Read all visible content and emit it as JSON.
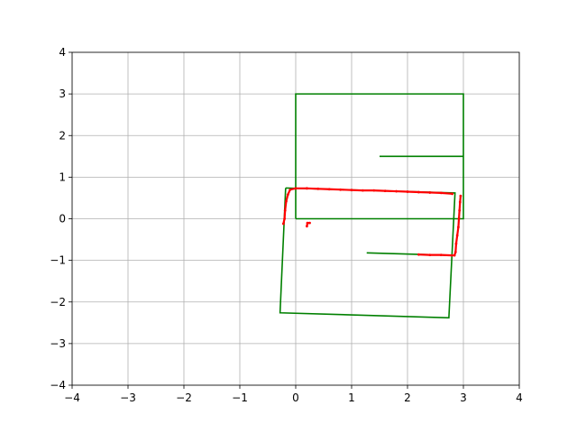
{
  "chart_data": {
    "type": "line",
    "title": "",
    "xlabel": "",
    "ylabel": "",
    "xlim": [
      -4,
      4
    ],
    "ylim": [
      -4,
      4
    ],
    "grid": true,
    "x_ticks": [
      -4,
      -3,
      -2,
      -1,
      0,
      1,
      2,
      3,
      4
    ],
    "y_ticks": [
      -4,
      -3,
      -2,
      -1,
      0,
      1,
      2,
      3,
      4
    ],
    "x_tick_labels": [
      "−4",
      "−3",
      "−2",
      "−1",
      "0",
      "1",
      "2",
      "3",
      "4"
    ],
    "y_tick_labels": [
      "−4",
      "−3",
      "−2",
      "−1",
      "0",
      "1",
      "2",
      "3",
      "4"
    ],
    "series": [
      {
        "color": "#008000",
        "style": "line",
        "segments": [
          [
            [
              0,
              0
            ],
            [
              0,
              3
            ],
            [
              3,
              3
            ],
            [
              3,
              0
            ],
            [
              0,
              0
            ]
          ],
          [
            [
              1.5,
              1.5
            ],
            [
              3,
              1.5
            ]
          ],
          [
            [
              -0.18,
              0.74
            ],
            [
              2.85,
              0.62
            ],
            [
              2.74,
              -2.38
            ],
            [
              -0.28,
              -2.26
            ],
            [
              -0.18,
              0.74
            ]
          ],
          [
            [
              1.27,
              -0.82
            ],
            [
              2.8,
              -0.88
            ]
          ]
        ]
      },
      {
        "color": "#ff0000",
        "style": "scatter",
        "segments": [
          [
            [
              -0.22,
              -0.12
            ],
            [
              -0.2,
              0.0
            ],
            [
              -0.19,
              0.2
            ],
            [
              -0.17,
              0.42
            ],
            [
              -0.14,
              0.58
            ],
            [
              -0.1,
              0.7
            ],
            [
              0.0,
              0.73
            ],
            [
              0.2,
              0.73
            ],
            [
              0.4,
              0.72
            ],
            [
              0.6,
              0.71
            ],
            [
              0.8,
              0.7
            ],
            [
              1.0,
              0.69
            ],
            [
              1.2,
              0.68
            ],
            [
              1.4,
              0.68
            ],
            [
              1.6,
              0.67
            ],
            [
              1.8,
              0.66
            ],
            [
              2.0,
              0.65
            ],
            [
              2.2,
              0.64
            ],
            [
              2.4,
              0.63
            ],
            [
              2.6,
              0.62
            ],
            [
              2.8,
              0.6
            ]
          ],
          [
            [
              2.95,
              0.55
            ],
            [
              2.94,
              0.4
            ],
            [
              2.93,
              0.2
            ],
            [
              2.92,
              0.0
            ],
            [
              2.91,
              -0.2
            ],
            [
              2.89,
              -0.4
            ],
            [
              2.87,
              -0.6
            ],
            [
              2.86,
              -0.8
            ],
            [
              2.84,
              -0.88
            ]
          ],
          [
            [
              2.2,
              -0.86
            ],
            [
              2.4,
              -0.87
            ],
            [
              2.6,
              -0.87
            ],
            [
              2.8,
              -0.88
            ]
          ],
          [
            [
              0.2,
              -0.18
            ],
            [
              0.21,
              -0.1
            ],
            [
              0.25,
              -0.1
            ]
          ]
        ]
      }
    ]
  }
}
